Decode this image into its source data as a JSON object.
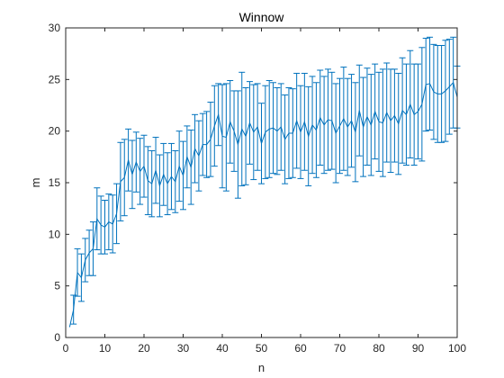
{
  "chart_data": {
    "type": "line",
    "title": "Winnow",
    "xlabel": "n",
    "ylabel": "m",
    "xlim": [
      0,
      100
    ],
    "ylim": [
      0,
      30
    ],
    "xticks": [
      0,
      10,
      20,
      30,
      40,
      50,
      60,
      70,
      80,
      90,
      100
    ],
    "yticks": [
      0,
      5,
      10,
      15,
      20,
      25,
      30
    ],
    "grid": false,
    "legend": "none",
    "series_color": "#0072BD",
    "series": [
      {
        "x": [
          1,
          2,
          3,
          4,
          5,
          6,
          7,
          8,
          9,
          10,
          11,
          12,
          13,
          14,
          15,
          16,
          17,
          18,
          19,
          20,
          21,
          22,
          23,
          24,
          25,
          26,
          27,
          28,
          29,
          30,
          31,
          32,
          33,
          34,
          35,
          36,
          37,
          38,
          39,
          40,
          41,
          42,
          43,
          44,
          45,
          46,
          47,
          48,
          49,
          50,
          51,
          52,
          53,
          54,
          55,
          56,
          57,
          58,
          59,
          60,
          61,
          62,
          63,
          64,
          65,
          66,
          67,
          68,
          69,
          70,
          71,
          72,
          73,
          74,
          75,
          76,
          77,
          78,
          79,
          80,
          81,
          82,
          83,
          84,
          85,
          86,
          87,
          88,
          89,
          90,
          91,
          92,
          93,
          94,
          95,
          96,
          97,
          98,
          99,
          100
        ],
        "y": [
          1.0,
          2.7,
          6.3,
          5.8,
          7.5,
          8.2,
          8.6,
          11.5,
          10.9,
          10.7,
          11.2,
          11.0,
          12.0,
          15.1,
          15.5,
          17.2,
          15.8,
          17.0,
          16.1,
          16.6,
          15.2,
          14.9,
          16.2,
          14.7,
          15.8,
          14.9,
          15.6,
          15.1,
          16.6,
          15.7,
          17.5,
          16.5,
          18.3,
          17.6,
          18.7,
          18.7,
          19.2,
          20.5,
          21.6,
          19.5,
          19.4,
          20.9,
          20.0,
          18.7,
          20.2,
          19.5,
          20.8,
          19.9,
          20.4,
          18.8,
          19.9,
          20.2,
          20.3,
          20.0,
          20.4,
          19.2,
          19.8,
          19.8,
          21.0,
          19.9,
          20.9,
          19.5,
          20.6,
          20.1,
          21.3,
          20.6,
          21.1,
          21.0,
          19.8,
          20.5,
          21.2,
          20.4,
          21.0,
          19.9,
          22.0,
          20.4,
          21.4,
          20.6,
          21.9,
          20.9,
          20.8,
          21.8,
          21.0,
          21.5,
          20.7,
          22.0,
          21.6,
          22.6,
          21.6,
          21.9,
          22.6,
          24.5,
          24.6,
          23.8,
          23.6,
          23.6,
          23.9,
          24.3,
          24.7,
          23.3
        ],
        "err": [
          0.0,
          1.4,
          2.3,
          2.3,
          2.1,
          2.2,
          2.6,
          3.0,
          2.8,
          2.6,
          2.7,
          2.8,
          2.9,
          3.8,
          3.7,
          3.0,
          3.3,
          2.9,
          3.2,
          3.0,
          3.3,
          3.2,
          3.2,
          3.0,
          3.0,
          3.0,
          3.2,
          3.0,
          3.4,
          3.3,
          3.0,
          3.6,
          3.3,
          3.4,
          3.0,
          3.2,
          3.6,
          3.9,
          3.0,
          5.0,
          5.2,
          4.0,
          3.9,
          5.2,
          5.5,
          4.7,
          4.0,
          4.6,
          4.2,
          3.9,
          4.5,
          4.7,
          4.4,
          4.2,
          4.2,
          4.3,
          4.4,
          4.3,
          4.6,
          4.5,
          4.7,
          4.8,
          4.7,
          4.6,
          4.6,
          4.7,
          4.9,
          4.7,
          4.8,
          4.6,
          5.0,
          4.7,
          4.5,
          4.8,
          4.4,
          4.8,
          4.7,
          4.9,
          4.6,
          4.8,
          5.2,
          4.8,
          5.0,
          4.5,
          4.9,
          5.1,
          4.9,
          5.2,
          4.9,
          4.6,
          5.5,
          4.5,
          4.5,
          4.6,
          4.7,
          4.7,
          4.9,
          4.6,
          4.4,
          3.0
        ]
      }
    ]
  }
}
